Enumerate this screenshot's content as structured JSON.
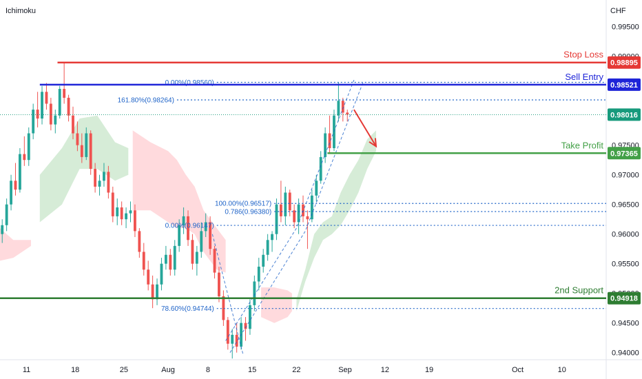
{
  "header": {
    "indicator_name": "Ichimoku",
    "currency": "CHF"
  },
  "colors": {
    "background": "#ffffff",
    "grid": "#f0f3fa",
    "up_candle": "#26a69a",
    "down_candle": "#ef5350",
    "stop_loss": "#e53935",
    "sell_entry": "#1e24d8",
    "take_profit": "#43a047",
    "support": "#2e7d32",
    "last_price": "#179a7c",
    "fib": "#1e63c8",
    "cloud_bull": "#c8e6c9",
    "cloud_bear": "#ffcdd2",
    "arrow": "#e53935",
    "axis_text": "#131722"
  },
  "chart_data": {
    "type": "candlestick",
    "symbol_currency": "CHF",
    "y_axis": {
      "ticks": [
        0.995,
        0.99,
        0.985,
        0.98,
        0.975,
        0.97,
        0.965,
        0.96,
        0.955,
        0.95,
        0.945,
        0.94
      ],
      "tick_labels": [
        "0.99500",
        "0.99000",
        "0.98500",
        "0.98000",
        "0.97500",
        "0.97000",
        "0.96500",
        "0.96000",
        "0.95500",
        "0.95000",
        "0.94500",
        "0.94000"
      ],
      "range": [
        0.9388,
        0.9995
      ]
    },
    "x_axis": {
      "tick_labels": [
        "11",
        "18",
        "25",
        "Aug",
        "8",
        "15",
        "22",
        "Sep",
        "12",
        "19",
        "Oct",
        "10"
      ],
      "tick_index": [
        6,
        17,
        28,
        38,
        47,
        57,
        67,
        78,
        87,
        97,
        117,
        127
      ],
      "range": [
        0,
        137
      ]
    },
    "level_lines": [
      {
        "name": "Stop Loss",
        "value": 0.98895,
        "price_label": "0.98895",
        "text": "Stop Loss",
        "start_index": 13
      },
      {
        "name": "Sell Entry",
        "value": 0.98521,
        "price_label": "0.98521",
        "text": "Sell Entry",
        "start_index": 9
      },
      {
        "name": "Take Profit",
        "value": 0.97365,
        "price_label": "0.97365",
        "text": "Take Profit",
        "start_index": 74
      },
      {
        "name": "2nd Support",
        "value": 0.94918,
        "price_label": "0.94918",
        "text": "2nd Support",
        "start_index": 0
      }
    ],
    "last_price": {
      "value": 0.98016,
      "label": "0.98016"
    },
    "fib_levels": [
      {
        "label": "0.00%(0.98560)",
        "value": 0.9856,
        "start_index": 49
      },
      {
        "label": "161.80%(0.98264)",
        "value": 0.98264,
        "start_index": 40
      },
      {
        "label": "100.00%(0.96517)",
        "value": 0.96517,
        "start_index": 62
      },
      {
        "label": "0.786(0.96380)",
        "value": 0.9638,
        "start_index": 62
      },
      {
        "label": "0.00%(0.96147)",
        "value": 0.96147,
        "start_index": 49
      },
      {
        "label": "78.60%(0.94744)",
        "value": 0.94744,
        "start_index": 49
      }
    ],
    "candles": [
      [
        0.96,
        0.9625,
        0.9585,
        0.9615
      ],
      [
        0.9615,
        0.966,
        0.9605,
        0.965
      ],
      [
        0.965,
        0.97,
        0.964,
        0.969
      ],
      [
        0.969,
        0.972,
        0.9665,
        0.9675
      ],
      [
        0.9675,
        0.9745,
        0.967,
        0.9735
      ],
      [
        0.9735,
        0.9765,
        0.9715,
        0.9725
      ],
      [
        0.9725,
        0.978,
        0.9715,
        0.977
      ],
      [
        0.977,
        0.982,
        0.976,
        0.981
      ],
      [
        0.981,
        0.984,
        0.978,
        0.9795
      ],
      [
        0.9795,
        0.985,
        0.9785,
        0.984
      ],
      [
        0.984,
        0.9855,
        0.981,
        0.982
      ],
      [
        0.982,
        0.983,
        0.9775,
        0.9785
      ],
      [
        0.9785,
        0.981,
        0.977,
        0.98
      ],
      [
        0.98,
        0.985,
        0.9795,
        0.9845
      ],
      [
        0.9845,
        0.989,
        0.982,
        0.983
      ],
      [
        0.983,
        0.9835,
        0.979,
        0.98
      ],
      [
        0.98,
        0.9815,
        0.976,
        0.977
      ],
      [
        0.977,
        0.979,
        0.974,
        0.975
      ],
      [
        0.975,
        0.977,
        0.972,
        0.973
      ],
      [
        0.973,
        0.978,
        0.9725,
        0.977
      ],
      [
        0.977,
        0.9775,
        0.97,
        0.971
      ],
      [
        0.971,
        0.972,
        0.967,
        0.968
      ],
      [
        0.968,
        0.97,
        0.9665,
        0.969
      ],
      [
        0.969,
        0.972,
        0.968,
        0.9705
      ],
      [
        0.9705,
        0.9715,
        0.966,
        0.967
      ],
      [
        0.967,
        0.968,
        0.962,
        0.963
      ],
      [
        0.963,
        0.966,
        0.9615,
        0.9645
      ],
      [
        0.9645,
        0.9655,
        0.9615,
        0.9625
      ],
      [
        0.9625,
        0.9645,
        0.961,
        0.9635
      ],
      [
        0.9635,
        0.9655,
        0.962,
        0.964
      ],
      [
        0.964,
        0.965,
        0.9595,
        0.9605
      ],
      [
        0.9605,
        0.961,
        0.956,
        0.957
      ],
      [
        0.957,
        0.9585,
        0.953,
        0.954
      ],
      [
        0.954,
        0.9555,
        0.9505,
        0.9515
      ],
      [
        0.9515,
        0.953,
        0.9475,
        0.949
      ],
      [
        0.949,
        0.9525,
        0.948,
        0.9515
      ],
      [
        0.9515,
        0.956,
        0.9505,
        0.955
      ],
      [
        0.955,
        0.958,
        0.954,
        0.9565
      ],
      [
        0.9565,
        0.9575,
        0.953,
        0.954
      ],
      [
        0.954,
        0.959,
        0.953,
        0.958
      ],
      [
        0.958,
        0.9625,
        0.957,
        0.9615
      ],
      [
        0.9615,
        0.9645,
        0.96,
        0.963
      ],
      [
        0.963,
        0.964,
        0.958,
        0.959
      ],
      [
        0.959,
        0.96,
        0.954,
        0.955
      ],
      [
        0.955,
        0.958,
        0.953,
        0.957
      ],
      [
        0.957,
        0.962,
        0.956,
        0.9605
      ],
      [
        0.9605,
        0.9635,
        0.9595,
        0.962
      ],
      [
        0.962,
        0.963,
        0.9565,
        0.9575
      ],
      [
        0.9575,
        0.958,
        0.9525,
        0.9535
      ],
      [
        0.9535,
        0.9545,
        0.9485,
        0.9495
      ],
      [
        0.9495,
        0.9505,
        0.9445,
        0.9455
      ],
      [
        0.9455,
        0.946,
        0.9405,
        0.9415
      ],
      [
        0.9415,
        0.944,
        0.939,
        0.943
      ],
      [
        0.943,
        0.945,
        0.94,
        0.941
      ],
      [
        0.941,
        0.946,
        0.9405,
        0.945
      ],
      [
        0.945,
        0.946,
        0.942,
        0.944
      ],
      [
        0.944,
        0.949,
        0.943,
        0.948
      ],
      [
        0.948,
        0.953,
        0.947,
        0.952
      ],
      [
        0.952,
        0.956,
        0.9505,
        0.9545
      ],
      [
        0.9545,
        0.9575,
        0.9535,
        0.9565
      ],
      [
        0.9565,
        0.96,
        0.9555,
        0.959
      ],
      [
        0.959,
        0.9605,
        0.957,
        0.96
      ],
      [
        0.96,
        0.966,
        0.959,
        0.965
      ],
      [
        0.965,
        0.969,
        0.962,
        0.963
      ],
      [
        0.963,
        0.968,
        0.9615,
        0.967
      ],
      [
        0.967,
        0.9675,
        0.963,
        0.964
      ],
      [
        0.964,
        0.965,
        0.961,
        0.962
      ],
      [
        0.962,
        0.966,
        0.96,
        0.965
      ],
      [
        0.965,
        0.9665,
        0.962,
        0.963
      ],
      [
        0.963,
        0.964,
        0.9575,
        0.9625
      ],
      [
        0.9625,
        0.9675,
        0.962,
        0.9665
      ],
      [
        0.9665,
        0.97,
        0.9655,
        0.969
      ],
      [
        0.969,
        0.974,
        0.9685,
        0.973
      ],
      [
        0.973,
        0.978,
        0.972,
        0.977
      ],
      [
        0.977,
        0.98,
        0.9735,
        0.9745
      ],
      [
        0.9745,
        0.981,
        0.974,
        0.98
      ],
      [
        0.98,
        0.9856,
        0.979,
        0.9825
      ],
      [
        0.9825,
        0.983,
        0.979,
        0.9805
      ],
      [
        0.9805,
        0.981,
        0.979,
        0.98016
      ]
    ],
    "cloud_segments": [
      {
        "kind": "bull",
        "upper": [
          [
            9,
            0.97
          ],
          [
            14,
            0.9745
          ],
          [
            18,
            0.9795
          ],
          [
            22,
            0.98
          ],
          [
            26,
            0.9755
          ],
          [
            29,
            0.9745
          ]
        ],
        "lower": [
          [
            29,
            0.97
          ],
          [
            26,
            0.969
          ],
          [
            22,
            0.971
          ],
          [
            18,
            0.971
          ],
          [
            14,
            0.965
          ],
          [
            9,
            0.962
          ]
        ]
      },
      {
        "kind": "bear",
        "upper": [
          [
            0,
            0.961
          ],
          [
            3,
            0.959
          ],
          [
            7,
            0.959
          ]
        ],
        "lower": [
          [
            7,
            0.958
          ],
          [
            3,
            0.956
          ],
          [
            0,
            0.9555
          ]
        ]
      },
      {
        "kind": "bear",
        "upper": [
          [
            30,
            0.9775
          ],
          [
            34,
            0.9755
          ],
          [
            38,
            0.974
          ],
          [
            40,
            0.9725
          ],
          [
            42,
            0.97
          ],
          [
            44,
            0.968
          ],
          [
            46,
            0.964
          ],
          [
            49,
            0.961
          ],
          [
            51,
            0.959
          ]
        ],
        "lower": [
          [
            51,
            0.9535
          ],
          [
            49,
            0.954
          ],
          [
            46,
            0.957
          ],
          [
            44,
            0.96
          ],
          [
            42,
            0.961
          ],
          [
            40,
            0.961
          ],
          [
            38,
            0.962
          ],
          [
            34,
            0.964
          ],
          [
            30,
            0.964
          ]
        ]
      },
      {
        "kind": "bear",
        "upper": [
          [
            59,
            0.951
          ],
          [
            62,
            0.951
          ],
          [
            65,
            0.9505
          ],
          [
            66,
            0.95
          ]
        ],
        "lower": [
          [
            66,
            0.947
          ],
          [
            65,
            0.946
          ],
          [
            62,
            0.945
          ],
          [
            59,
            0.946
          ]
        ]
      },
      {
        "kind": "bull",
        "upper": [
          [
            67,
            0.949
          ],
          [
            69,
            0.954
          ],
          [
            71,
            0.96
          ],
          [
            73,
            0.962
          ],
          [
            75,
            0.963
          ],
          [
            77,
            0.967
          ],
          [
            79,
            0.97
          ],
          [
            81,
            0.9725
          ],
          [
            83,
            0.976
          ],
          [
            85,
            0.9775
          ]
        ],
        "lower": [
          [
            85,
            0.974
          ],
          [
            83,
            0.971
          ],
          [
            81,
            0.967
          ],
          [
            79,
            0.964
          ],
          [
            77,
            0.9615
          ],
          [
            75,
            0.96
          ],
          [
            73,
            0.959
          ],
          [
            71,
            0.956
          ],
          [
            69,
            0.952
          ],
          [
            67,
            0.947
          ]
        ]
      }
    ],
    "dashed_channels": [
      [
        [
          48,
          0.96
        ],
        [
          55,
          0.9395
        ]
      ],
      [
        [
          51,
          0.942
        ],
        [
          67,
          0.961
        ],
        [
          80,
          0.986
        ]
      ],
      [
        [
          52,
          0.94
        ],
        [
          69,
          0.9605
        ],
        [
          82,
          0.9855
        ]
      ]
    ],
    "arrow": {
      "from": [
        80,
        0.981
      ],
      "to": [
        85,
        0.9748
      ]
    },
    "grid": false
  }
}
